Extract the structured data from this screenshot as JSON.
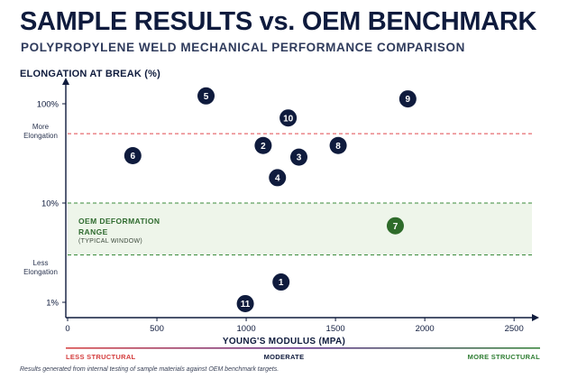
{
  "title": "SAMPLE RESULTS vs. OEM BENCHMARK",
  "subtitle": "POLYPROPYLENE WELD MECHANICAL PERFORMANCE COMPARISON",
  "footer": "Results generated from internal testing of sample materials against OEM benchmark targets.",
  "colors": {
    "navy": "#0f1b3d",
    "band_fill": "#eef5ea",
    "band_line": "#3a8a3a",
    "upper_line": "#e0484d",
    "highlight_point": "#2e6b2a",
    "scale_left": "#d43c3c",
    "scale_mid": "#5a2a86",
    "scale_right": "#2e7d32"
  },
  "zones": {
    "upper": "More Elongation",
    "lower": "Less Elongation"
  },
  "band": {
    "title_line1": "OEM DEFORMATION",
    "title_line2": "RANGE",
    "subtitle": "(TYPICAL WINDOW)",
    "y_min": 3,
    "y_max": 10
  },
  "threshold_upper": 50,
  "structural_scale": {
    "left": "LESS STRUCTURAL",
    "middle": "MODERATE",
    "right": "MORE STRUCTURAL"
  },
  "chart_data": {
    "type": "scatter",
    "xlabel": "YOUNG'S MODULUS (MPA)",
    "ylabel": "ELONGATION AT BREAK (%)",
    "xlim": [
      0,
      2600
    ],
    "ylim": [
      0.8,
      160
    ],
    "yscale": "log",
    "x_ticks": [
      "0",
      "500",
      "1000",
      "1500",
      "2000",
      "2500"
    ],
    "x_tick_values": [
      0,
      500,
      1000,
      1500,
      2000,
      2500
    ],
    "y_ticks": [
      "1%",
      "10%",
      "100%"
    ],
    "y_tick_values": [
      1,
      10,
      100
    ],
    "points": [
      {
        "label": "1",
        "x": 1195,
        "y": 1.6
      },
      {
        "label": "2",
        "x": 1095,
        "y": 38
      },
      {
        "label": "3",
        "x": 1295,
        "y": 29
      },
      {
        "label": "4",
        "x": 1175,
        "y": 18
      },
      {
        "label": "5",
        "x": 775,
        "y": 120
      },
      {
        "label": "6",
        "x": 365,
        "y": 30
      },
      {
        "label": "7",
        "x": 1835,
        "y": 5.9,
        "highlight": true
      },
      {
        "label": "8",
        "x": 1515,
        "y": 38
      },
      {
        "label": "9",
        "x": 1905,
        "y": 112
      },
      {
        "label": "10",
        "x": 1235,
        "y": 72
      },
      {
        "label": "11",
        "x": 995,
        "y": 0.97
      }
    ]
  }
}
